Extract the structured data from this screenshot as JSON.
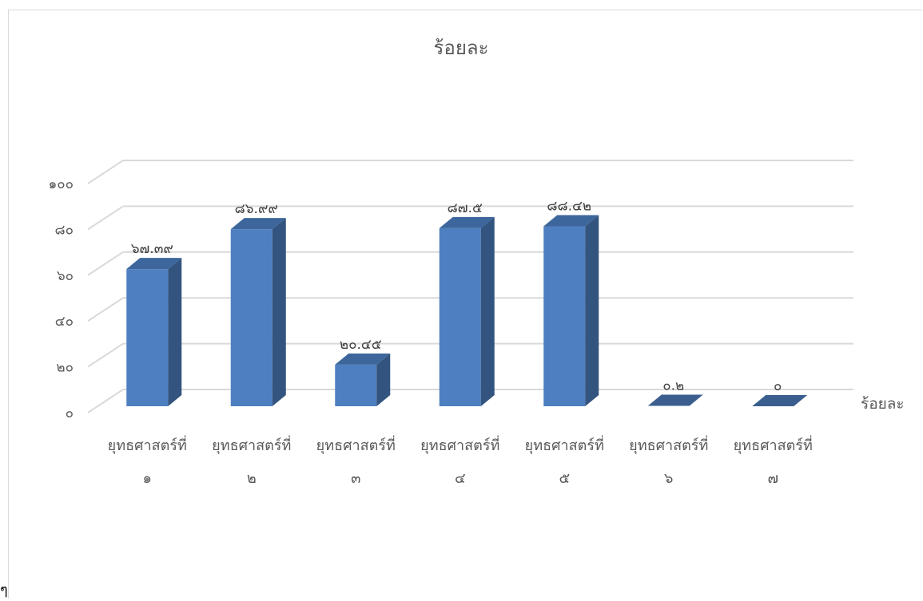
{
  "chart_data": {
    "type": "bar",
    "title": "ร้อยละ",
    "categories": [
      [
        "ยุทธศาสตร์ที่",
        "๑"
      ],
      [
        "ยุทธศาสตร์ที่",
        "๒"
      ],
      [
        "ยุทธศาสตร์ที่",
        "๓"
      ],
      [
        "ยุทธศาสตร์ที่",
        "๔"
      ],
      [
        "ยุทธศาสตร์ที่",
        "๕"
      ],
      [
        "ยุทธศาสตร์ที่",
        "๖"
      ],
      [
        "ยุทธศาสตร์ที่",
        "๗"
      ]
    ],
    "series": [
      {
        "name": "ร้อยละ",
        "values": [
          67.39,
          86.99,
          20.45,
          87.5,
          88.42,
          0.2,
          0
        ],
        "data_labels": [
          "๖๗.๓๙",
          "๘๖.๙๙",
          "๒๐.๔๕",
          "๘๗.๕",
          "๘๘.๔๒",
          "๐.๒",
          "๐"
        ],
        "color": "#4e7fc0"
      }
    ],
    "ylim": [
      0,
      100
    ],
    "y_ticks": [
      0,
      20,
      40,
      60,
      80,
      100
    ],
    "y_tick_labels": [
      "๐",
      "๒๐",
      "๔๐",
      "๖๐",
      "๘๐",
      "๑๐๐"
    ],
    "grid": true,
    "legend_position": "right",
    "style": "3d-column"
  },
  "stray_text": "ๆ"
}
